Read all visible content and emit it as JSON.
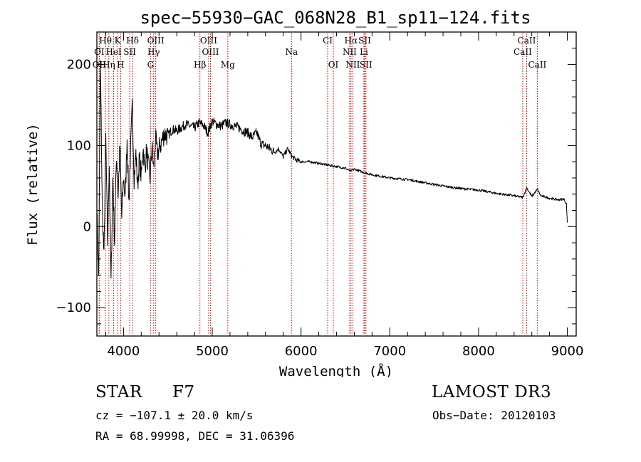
{
  "chart_data": {
    "type": "line",
    "title": "spec−55930−GAC_068N28_B1_sp11−124.fits",
    "xlabel": "Wavelength (Å)",
    "ylabel": "Flux (relative)",
    "xlim": [
      3700,
      9100
    ],
    "ylim": [
      -135,
      240
    ],
    "x_ticks": [
      4000,
      5000,
      6000,
      7000,
      8000,
      9000
    ],
    "y_ticks": [
      -100,
      0,
      100,
      200
    ],
    "y_tick_labels": [
      "−100",
      "0",
      "100",
      "200"
    ],
    "series": [
      {
        "name": "flux",
        "color": "#000000",
        "x": [
          3700,
          3720,
          3740,
          3760,
          3780,
          3800,
          3820,
          3840,
          3860,
          3880,
          3900,
          3920,
          3940,
          3960,
          3980,
          4000,
          4020,
          4040,
          4060,
          4080,
          4100,
          4120,
          4140,
          4160,
          4180,
          4200,
          4220,
          4240,
          4260,
          4280,
          4300,
          4320,
          4340,
          4360,
          4380,
          4400,
          4430,
          4460,
          4500,
          4550,
          4600,
          4650,
          4700,
          4750,
          4800,
          4850,
          4900,
          4950,
          5000,
          5050,
          5100,
          5150,
          5200,
          5250,
          5300,
          5350,
          5400,
          5450,
          5500,
          5550,
          5600,
          5650,
          5700,
          5750,
          5800,
          5850,
          5900,
          5950,
          6000,
          6100,
          6200,
          6300,
          6400,
          6500,
          6560,
          6600,
          6700,
          6800,
          6900,
          7000,
          7200,
          7400,
          7600,
          7800,
          8000,
          8200,
          8400,
          8500,
          8542,
          8600,
          8662,
          8700,
          8800,
          8900,
          8960,
          8990,
          9000
        ],
        "y": [
          20,
          -60,
          200,
          30,
          -40,
          110,
          -20,
          80,
          -70,
          60,
          -20,
          90,
          40,
          100,
          10,
          60,
          35,
          110,
          30,
          95,
          150,
          60,
          90,
          50,
          85,
          60,
          100,
          70,
          95,
          75,
          60,
          100,
          70,
          110,
          90,
          95,
          105,
          115,
          112,
          120,
          118,
          122,
          126,
          124,
          122,
          128,
          125,
          116,
          130,
          126,
          124,
          128,
          126,
          124,
          122,
          118,
          116,
          110,
          116,
          102,
          100,
          96,
          92,
          96,
          86,
          96,
          86,
          82,
          80,
          80,
          78,
          76,
          74,
          72,
          68,
          71,
          67,
          64,
          62,
          60,
          58,
          54,
          50,
          47,
          45,
          41,
          38,
          36,
          48,
          37,
          46,
          38,
          35,
          33,
          34,
          28,
          5
        ]
      }
    ],
    "line_markers": [
      {
        "label": "Hθ",
        "x": 3797,
        "row": 1
      },
      {
        "label": "K",
        "x": 3934,
        "row": 1
      },
      {
        "label": "Hδ",
        "x": 4102,
        "row": 1
      },
      {
        "label": "OIII",
        "x": 4363,
        "row": 1
      },
      {
        "label": "OIII",
        "x": 4959,
        "row": 1
      },
      {
        "label": "CI",
        "x": 6300,
        "row": 1
      },
      {
        "label": "Hα",
        "x": 6563,
        "row": 1
      },
      {
        "label": "SII",
        "x": 6717,
        "row": 1
      },
      {
        "label": "CaII",
        "x": 8542,
        "row": 1
      },
      {
        "label": "OI",
        "x": 3727,
        "row": 2
      },
      {
        "label": "HeI",
        "x": 3889,
        "row": 2
      },
      {
        "label": "SII",
        "x": 4070,
        "row": 2
      },
      {
        "label": "Hγ",
        "x": 4340,
        "row": 2
      },
      {
        "label": "OIII",
        "x": 4980,
        "row": 2
      },
      {
        "label": "Na",
        "x": 5893,
        "row": 2
      },
      {
        "label": "NII",
        "x": 6548,
        "row": 2
      },
      {
        "label": "Li",
        "x": 6708,
        "row": 2
      },
      {
        "label": "CaII",
        "x": 8498,
        "row": 2
      },
      {
        "label": "OII",
        "x": 3727,
        "row": 3
      },
      {
        "label": "Hη",
        "x": 3835,
        "row": 3
      },
      {
        "label": "H",
        "x": 3968,
        "row": 3
      },
      {
        "label": "G",
        "x": 4305,
        "row": 3
      },
      {
        "label": "Hβ",
        "x": 4861,
        "row": 3
      },
      {
        "label": "Mg",
        "x": 5175,
        "row": 3
      },
      {
        "label": "OI",
        "x": 6364,
        "row": 3
      },
      {
        "label": "NII",
        "x": 6584,
        "row": 3
      },
      {
        "label": "SII",
        "x": 6731,
        "row": 3
      },
      {
        "label": "CaII",
        "x": 8662,
        "row": 3
      }
    ],
    "marker_color": "#cc0000"
  },
  "info": {
    "object_class": "STAR",
    "subclass": "F7",
    "survey": "LAMOST DR3",
    "cz": "cz = −107.1 ± 20.0 km/s",
    "obs_date": "Obs−Date: 20120103",
    "radec": "RA =  68.99998, DEC =  31.06396"
  }
}
